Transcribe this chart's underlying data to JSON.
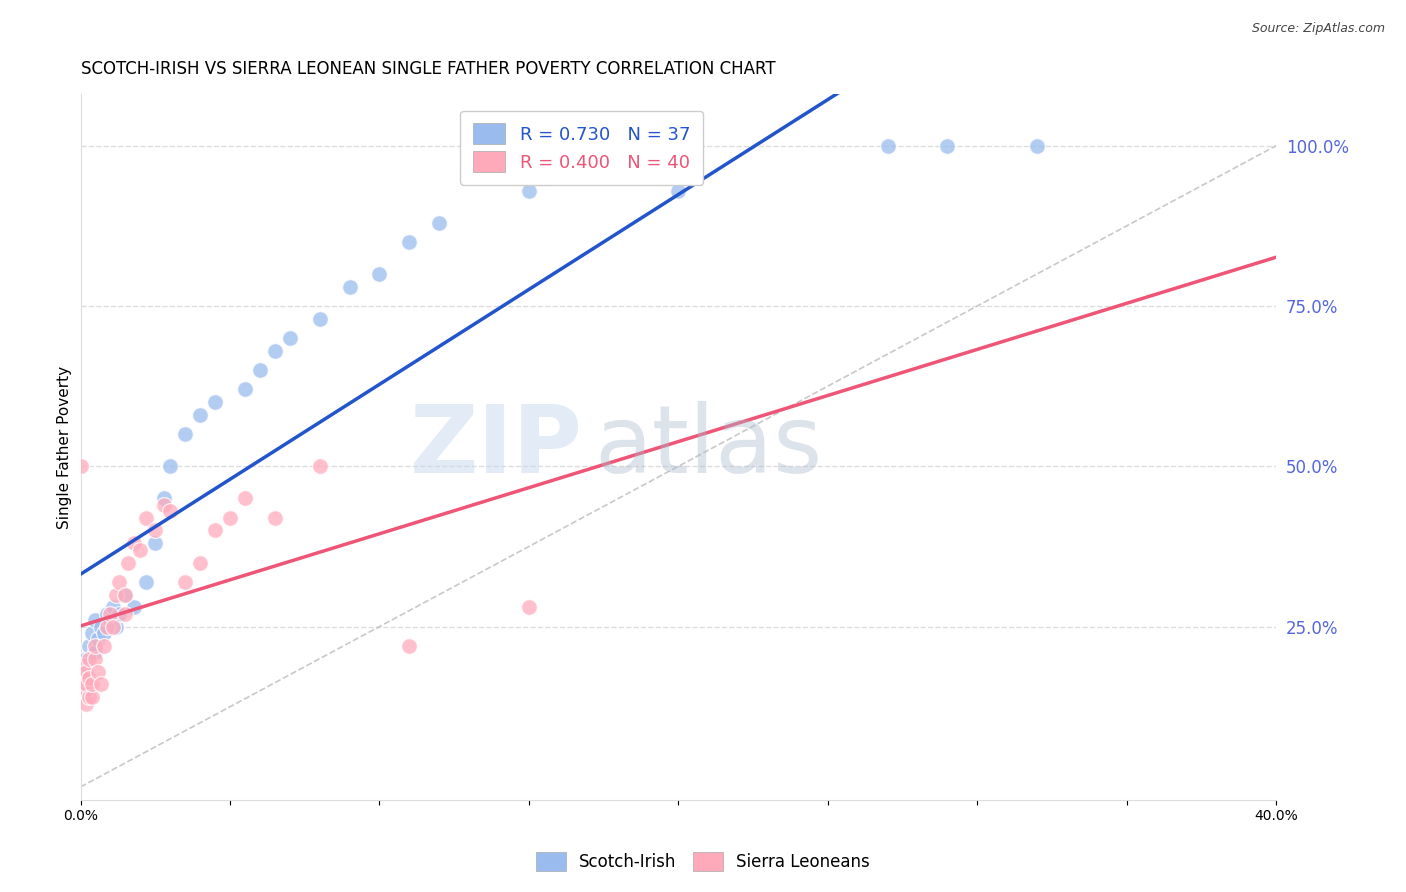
{
  "title": "SCOTCH-IRISH VS SIERRA LEONEAN SINGLE FATHER POVERTY CORRELATION CHART",
  "source": "Source: ZipAtlas.com",
  "ylabel": "Single Father Poverty",
  "xlim": [
    0.0,
    0.4
  ],
  "ylim": [
    -0.02,
    1.08
  ],
  "xticks": [
    0.0,
    0.05,
    0.1,
    0.15,
    0.2,
    0.25,
    0.3,
    0.35,
    0.4
  ],
  "xticklabels": [
    "0.0%",
    "",
    "",
    "",
    "",
    "",
    "",
    "",
    "40.0%"
  ],
  "yticks_right": [
    0.25,
    0.5,
    0.75,
    1.0
  ],
  "ytick_right_labels": [
    "25.0%",
    "50.0%",
    "75.0%",
    "100.0%"
  ],
  "right_axis_color": "#5566DD",
  "legend_r1": "R = 0.730",
  "legend_n1": "N = 37",
  "legend_r2": "R = 0.400",
  "legend_n2": "N = 40",
  "color_blue": "#99BBEE",
  "color_pink": "#FFAABB",
  "color_line_blue": "#2255CC",
  "color_line_pink": "#EE5577",
  "watermark_zip": "ZIP",
  "watermark_atlas": "atlas",
  "watermark_color_zip": "#C8D8EE",
  "watermark_color_atlas": "#AABBCC",
  "scotch_irish_x": [
    0.002,
    0.003,
    0.004,
    0.005,
    0.005,
    0.006,
    0.007,
    0.008,
    0.009,
    0.01,
    0.011,
    0.012,
    0.013,
    0.015,
    0.018,
    0.022,
    0.025,
    0.028,
    0.03,
    0.035,
    0.04,
    0.045,
    0.055,
    0.06,
    0.065,
    0.07,
    0.08,
    0.09,
    0.1,
    0.11,
    0.12,
    0.15,
    0.155,
    0.2,
    0.27,
    0.29,
    0.32
  ],
  "scotch_irish_y": [
    0.2,
    0.22,
    0.24,
    0.21,
    0.26,
    0.23,
    0.25,
    0.24,
    0.27,
    0.26,
    0.28,
    0.25,
    0.27,
    0.3,
    0.28,
    0.32,
    0.38,
    0.45,
    0.5,
    0.55,
    0.58,
    0.6,
    0.62,
    0.65,
    0.68,
    0.7,
    0.73,
    0.78,
    0.8,
    0.85,
    0.88,
    0.93,
    0.95,
    0.93,
    1.0,
    1.0,
    1.0
  ],
  "sierra_leonean_x": [
    0.0,
    0.001,
    0.001,
    0.001,
    0.002,
    0.002,
    0.002,
    0.003,
    0.003,
    0.003,
    0.004,
    0.004,
    0.005,
    0.005,
    0.006,
    0.007,
    0.008,
    0.009,
    0.01,
    0.011,
    0.012,
    0.013,
    0.015,
    0.015,
    0.016,
    0.018,
    0.02,
    0.022,
    0.025,
    0.028,
    0.03,
    0.035,
    0.04,
    0.045,
    0.05,
    0.055,
    0.065,
    0.08,
    0.11,
    0.15
  ],
  "sierra_leonean_y": [
    0.5,
    0.15,
    0.17,
    0.19,
    0.13,
    0.16,
    0.18,
    0.14,
    0.17,
    0.2,
    0.14,
    0.16,
    0.2,
    0.22,
    0.18,
    0.16,
    0.22,
    0.25,
    0.27,
    0.25,
    0.3,
    0.32,
    0.27,
    0.3,
    0.35,
    0.38,
    0.37,
    0.42,
    0.4,
    0.44,
    0.43,
    0.32,
    0.35,
    0.4,
    0.42,
    0.45,
    0.42,
    0.5,
    0.22,
    0.28
  ],
  "grid_color": "#DDDDDD",
  "background_color": "#FFFFFF",
  "title_fontsize": 12,
  "axis_label_fontsize": 11,
  "tick_fontsize": 10,
  "legend_fontsize": 13
}
